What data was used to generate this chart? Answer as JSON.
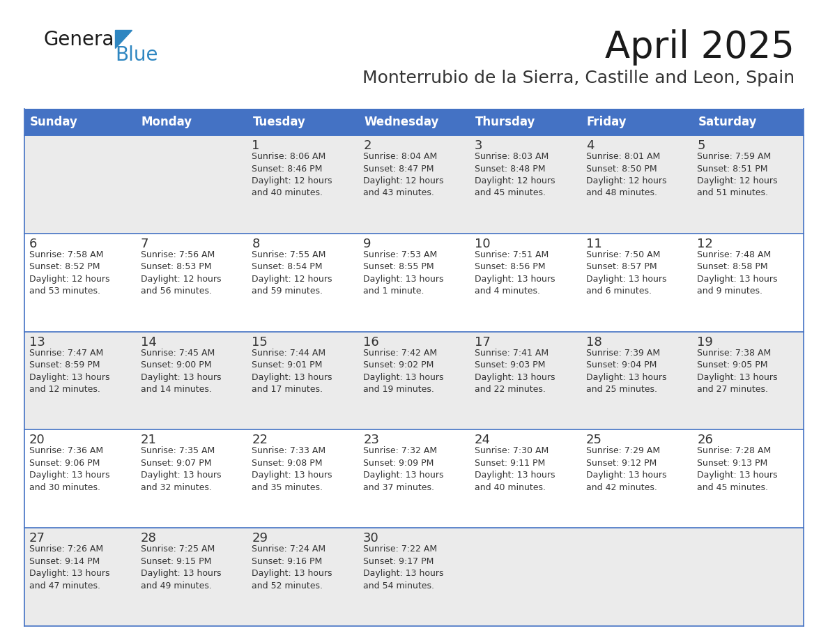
{
  "title": "April 2025",
  "subtitle": "Monterrubio de la Sierra, Castille and Leon, Spain",
  "header_color": "#4472C4",
  "header_text_color": "#FFFFFF",
  "cell_bg_white": "#FFFFFF",
  "cell_bg_gray": "#EBEBEB",
  "row_divider_color": "#4472C4",
  "text_color": "#333333",
  "days_of_week": [
    "Sunday",
    "Monday",
    "Tuesday",
    "Wednesday",
    "Thursday",
    "Friday",
    "Saturday"
  ],
  "calendar": [
    [
      {
        "day": "",
        "info": ""
      },
      {
        "day": "",
        "info": ""
      },
      {
        "day": "1",
        "info": "Sunrise: 8:06 AM\nSunset: 8:46 PM\nDaylight: 12 hours\nand 40 minutes."
      },
      {
        "day": "2",
        "info": "Sunrise: 8:04 AM\nSunset: 8:47 PM\nDaylight: 12 hours\nand 43 minutes."
      },
      {
        "day": "3",
        "info": "Sunrise: 8:03 AM\nSunset: 8:48 PM\nDaylight: 12 hours\nand 45 minutes."
      },
      {
        "day": "4",
        "info": "Sunrise: 8:01 AM\nSunset: 8:50 PM\nDaylight: 12 hours\nand 48 minutes."
      },
      {
        "day": "5",
        "info": "Sunrise: 7:59 AM\nSunset: 8:51 PM\nDaylight: 12 hours\nand 51 minutes."
      }
    ],
    [
      {
        "day": "6",
        "info": "Sunrise: 7:58 AM\nSunset: 8:52 PM\nDaylight: 12 hours\nand 53 minutes."
      },
      {
        "day": "7",
        "info": "Sunrise: 7:56 AM\nSunset: 8:53 PM\nDaylight: 12 hours\nand 56 minutes."
      },
      {
        "day": "8",
        "info": "Sunrise: 7:55 AM\nSunset: 8:54 PM\nDaylight: 12 hours\nand 59 minutes."
      },
      {
        "day": "9",
        "info": "Sunrise: 7:53 AM\nSunset: 8:55 PM\nDaylight: 13 hours\nand 1 minute."
      },
      {
        "day": "10",
        "info": "Sunrise: 7:51 AM\nSunset: 8:56 PM\nDaylight: 13 hours\nand 4 minutes."
      },
      {
        "day": "11",
        "info": "Sunrise: 7:50 AM\nSunset: 8:57 PM\nDaylight: 13 hours\nand 6 minutes."
      },
      {
        "day": "12",
        "info": "Sunrise: 7:48 AM\nSunset: 8:58 PM\nDaylight: 13 hours\nand 9 minutes."
      }
    ],
    [
      {
        "day": "13",
        "info": "Sunrise: 7:47 AM\nSunset: 8:59 PM\nDaylight: 13 hours\nand 12 minutes."
      },
      {
        "day": "14",
        "info": "Sunrise: 7:45 AM\nSunset: 9:00 PM\nDaylight: 13 hours\nand 14 minutes."
      },
      {
        "day": "15",
        "info": "Sunrise: 7:44 AM\nSunset: 9:01 PM\nDaylight: 13 hours\nand 17 minutes."
      },
      {
        "day": "16",
        "info": "Sunrise: 7:42 AM\nSunset: 9:02 PM\nDaylight: 13 hours\nand 19 minutes."
      },
      {
        "day": "17",
        "info": "Sunrise: 7:41 AM\nSunset: 9:03 PM\nDaylight: 13 hours\nand 22 minutes."
      },
      {
        "day": "18",
        "info": "Sunrise: 7:39 AM\nSunset: 9:04 PM\nDaylight: 13 hours\nand 25 minutes."
      },
      {
        "day": "19",
        "info": "Sunrise: 7:38 AM\nSunset: 9:05 PM\nDaylight: 13 hours\nand 27 minutes."
      }
    ],
    [
      {
        "day": "20",
        "info": "Sunrise: 7:36 AM\nSunset: 9:06 PM\nDaylight: 13 hours\nand 30 minutes."
      },
      {
        "day": "21",
        "info": "Sunrise: 7:35 AM\nSunset: 9:07 PM\nDaylight: 13 hours\nand 32 minutes."
      },
      {
        "day": "22",
        "info": "Sunrise: 7:33 AM\nSunset: 9:08 PM\nDaylight: 13 hours\nand 35 minutes."
      },
      {
        "day": "23",
        "info": "Sunrise: 7:32 AM\nSunset: 9:09 PM\nDaylight: 13 hours\nand 37 minutes."
      },
      {
        "day": "24",
        "info": "Sunrise: 7:30 AM\nSunset: 9:11 PM\nDaylight: 13 hours\nand 40 minutes."
      },
      {
        "day": "25",
        "info": "Sunrise: 7:29 AM\nSunset: 9:12 PM\nDaylight: 13 hours\nand 42 minutes."
      },
      {
        "day": "26",
        "info": "Sunrise: 7:28 AM\nSunset: 9:13 PM\nDaylight: 13 hours\nand 45 minutes."
      }
    ],
    [
      {
        "day": "27",
        "info": "Sunrise: 7:26 AM\nSunset: 9:14 PM\nDaylight: 13 hours\nand 47 minutes."
      },
      {
        "day": "28",
        "info": "Sunrise: 7:25 AM\nSunset: 9:15 PM\nDaylight: 13 hours\nand 49 minutes."
      },
      {
        "day": "29",
        "info": "Sunrise: 7:24 AM\nSunset: 9:16 PM\nDaylight: 13 hours\nand 52 minutes."
      },
      {
        "day": "30",
        "info": "Sunrise: 7:22 AM\nSunset: 9:17 PM\nDaylight: 13 hours\nand 54 minutes."
      },
      {
        "day": "",
        "info": ""
      },
      {
        "day": "",
        "info": ""
      },
      {
        "day": "",
        "info": ""
      }
    ]
  ],
  "logo_general_color": "#1a1a1a",
  "logo_blue_color": "#2e86c1",
  "logo_triangle_color": "#2e86c1",
  "title_color": "#1a1a1a",
  "subtitle_color": "#333333",
  "title_fontsize": 38,
  "subtitle_fontsize": 18,
  "header_fontsize": 12,
  "day_num_fontsize": 13,
  "info_fontsize": 9,
  "logo_fontsize_general": 20,
  "logo_fontsize_blue": 20
}
